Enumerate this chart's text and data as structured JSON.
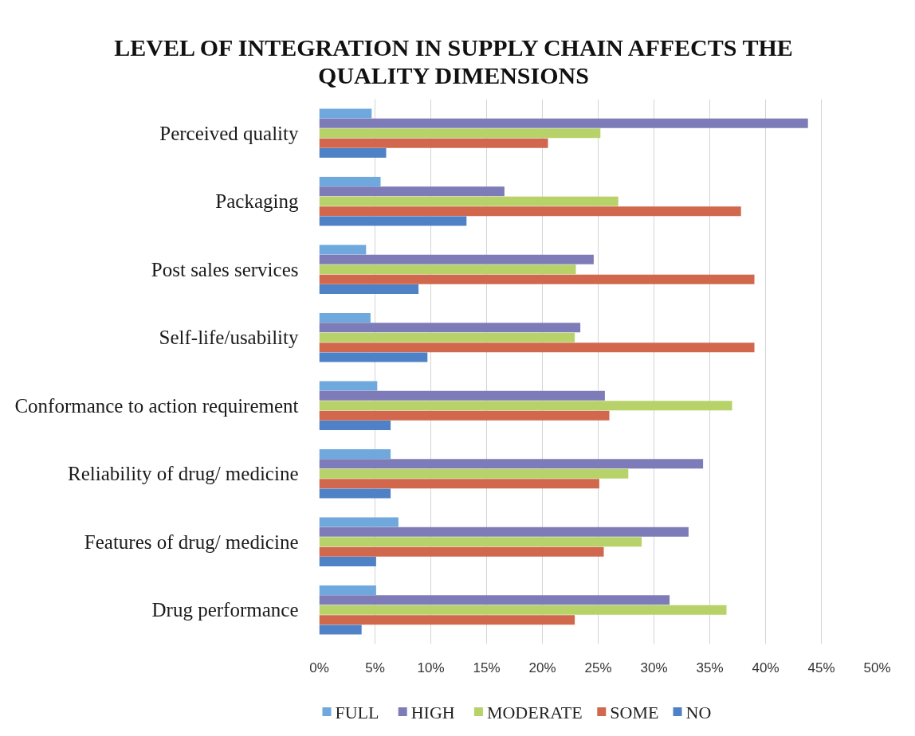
{
  "chart_data": {
    "type": "bar",
    "orientation": "horizontal",
    "title": "LEVEL OF INTEGRATION IN SUPPLY CHAIN AFFECTS THE QUALITY DIMENSIONS",
    "categories": [
      "Perceived quality",
      "Packaging",
      "Post sales services",
      "Self-life/usability",
      "Conformance to action requirement",
      "Reliability of drug/ medicine",
      "Features of drug/ medicine",
      "Drug performance"
    ],
    "series": [
      {
        "name": "FULL",
        "color": "#6fa8dc",
        "values": [
          4.7,
          5.5,
          4.2,
          4.6,
          5.2,
          6.4,
          7.1,
          5.1
        ]
      },
      {
        "name": "HIGH",
        "color": "#7e7cb8",
        "values": [
          43.8,
          16.6,
          24.6,
          23.4,
          25.6,
          34.4,
          33.1,
          31.4
        ]
      },
      {
        "name": "MODERATE",
        "color": "#b8d26a",
        "values": [
          25.2,
          26.8,
          23.0,
          22.9,
          37.0,
          27.7,
          28.9,
          36.5
        ]
      },
      {
        "name": "SOME",
        "color": "#d1674d",
        "values": [
          20.5,
          37.8,
          39.0,
          39.0,
          26.0,
          25.1,
          25.5,
          22.9
        ]
      },
      {
        "name": "NO",
        "color": "#4f81c7",
        "values": [
          6.0,
          13.2,
          8.9,
          9.7,
          6.4,
          6.4,
          5.1,
          3.8
        ]
      }
    ],
    "xlim": [
      0,
      50
    ],
    "xticks": [
      {
        "value": 0,
        "label": "0%"
      },
      {
        "value": 5,
        "label": "5%"
      },
      {
        "value": 10,
        "label": "10%"
      },
      {
        "value": 15,
        "label": "15%"
      },
      {
        "value": 20,
        "label": "20%"
      },
      {
        "value": 25,
        "label": "25%"
      },
      {
        "value": 30,
        "label": "30%"
      },
      {
        "value": 35,
        "label": "35%"
      },
      {
        "value": 40,
        "label": "40%"
      },
      {
        "value": 45,
        "label": "45%"
      },
      {
        "value": 50,
        "label": "50%"
      }
    ],
    "grid": "x",
    "legend": "bottom"
  }
}
